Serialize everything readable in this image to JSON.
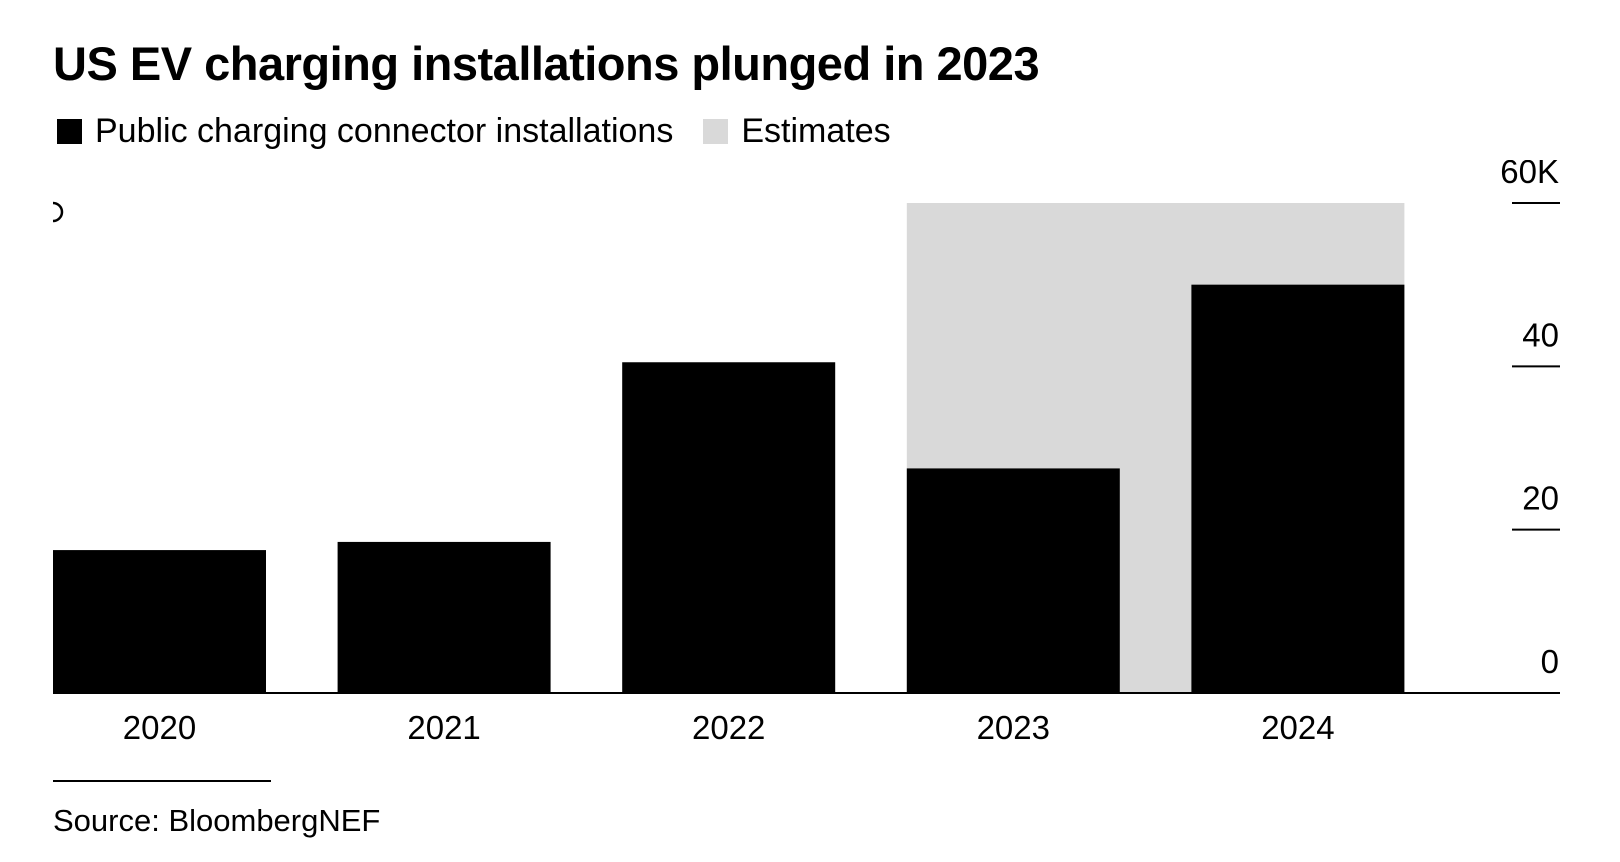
{
  "title": "US EV charging installations plunged in 2023",
  "legend": [
    {
      "label": "Public charging connector installations",
      "color": "#000000"
    },
    {
      "label": "Estimates",
      "color": "#d9d9d9"
    }
  ],
  "source": "Source: BloombergNEF",
  "corner_icon": "loading-arc-icon",
  "chart_data": {
    "type": "bar",
    "title": "US EV charging installations plunged in 2023",
    "categories": [
      "2020",
      "2021",
      "2022",
      "2023",
      "2024"
    ],
    "series": [
      {
        "name": "Public charging connector installations",
        "color": "#000000",
        "values": [
          17.5,
          18.5,
          40.5,
          27.5,
          50
        ]
      },
      {
        "name": "Estimates",
        "color": "#d9d9d9",
        "range_start": "2023",
        "range_end": "2024",
        "value": 60
      }
    ],
    "y_ticks": [
      {
        "value": 0,
        "label": "0"
      },
      {
        "value": 20,
        "label": "20"
      },
      {
        "value": 40,
        "label": "40"
      },
      {
        "value": 60,
        "label": "60K"
      }
    ],
    "ylim": [
      0,
      60
    ],
    "xlabel": "",
    "ylabel": "",
    "y_axis_side": "right",
    "grid": false
  }
}
